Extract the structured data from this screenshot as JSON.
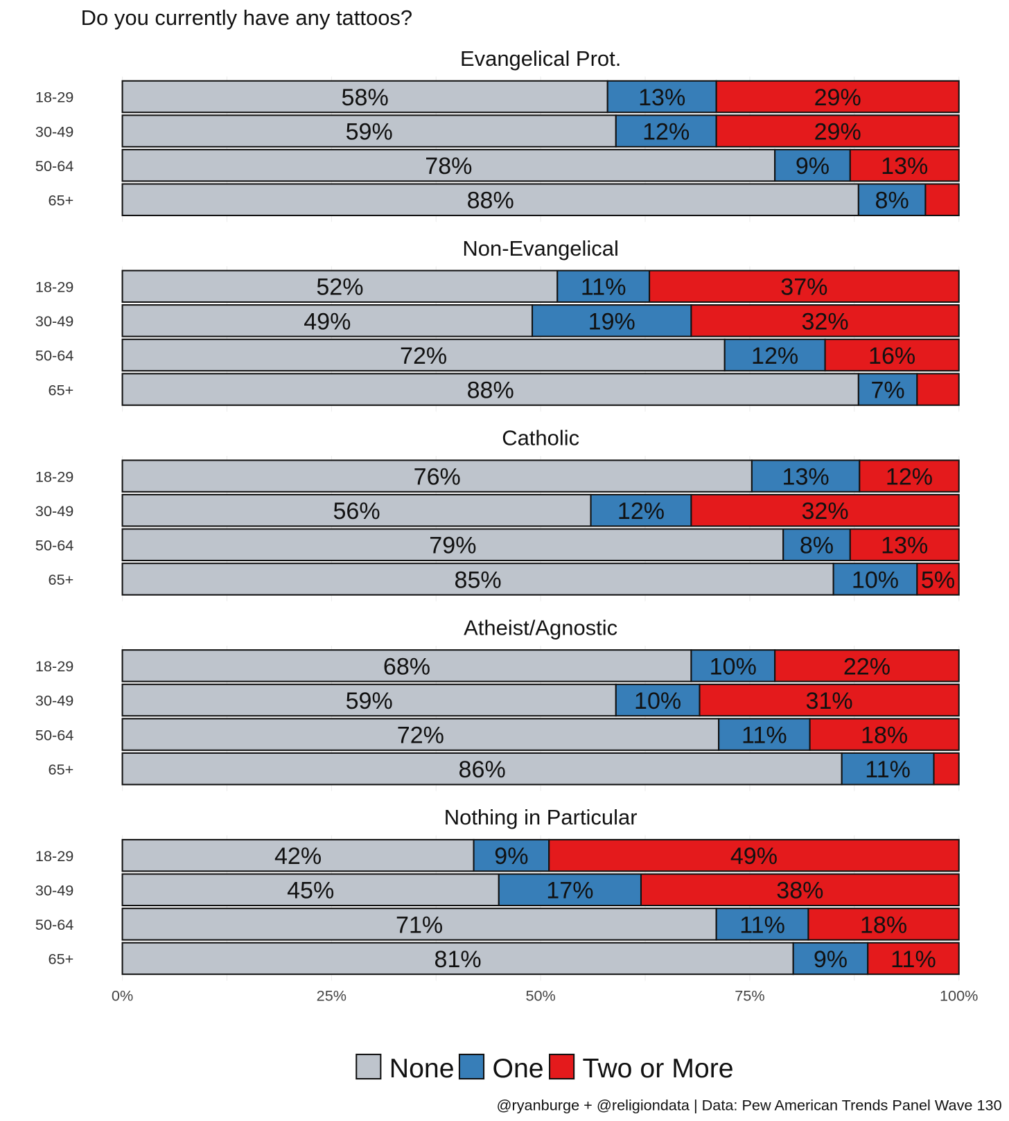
{
  "chart_data": {
    "type": "bar",
    "orientation": "horizontal",
    "stacked": true,
    "title": "Do you currently have any tattoos?",
    "caption": "@ryanburge + @religiondata | Data: Pew American Trends Panel Wave 130",
    "categories": [
      "18-29",
      "30-49",
      "50-64",
      "65+"
    ],
    "legend": {
      "placement": "bottom",
      "entries": [
        {
          "name": "None",
          "color": "#bec4cc"
        },
        {
          "name": "One",
          "color": "#377eb8"
        },
        {
          "name": "Two or More",
          "color": "#e41a1c"
        }
      ]
    },
    "x_ticks": [
      "0%",
      "25%",
      "50%",
      "75%",
      "100%"
    ],
    "xlim": [
      0,
      100
    ],
    "panels": [
      {
        "name": "Evangelical Prot.",
        "rows": [
          {
            "values": [
              58,
              13,
              29
            ],
            "show": [
              true,
              true,
              true
            ]
          },
          {
            "values": [
              59,
              12,
              29
            ],
            "show": [
              true,
              true,
              true
            ]
          },
          {
            "values": [
              78,
              9,
              13
            ],
            "show": [
              true,
              true,
              true
            ]
          },
          {
            "values": [
              88,
              8,
              4
            ],
            "show": [
              true,
              true,
              false
            ]
          }
        ]
      },
      {
        "name": "Non-Evangelical",
        "rows": [
          {
            "values": [
              52,
              11,
              37
            ],
            "show": [
              true,
              true,
              true
            ]
          },
          {
            "values": [
              49,
              19,
              32
            ],
            "show": [
              true,
              true,
              true
            ]
          },
          {
            "values": [
              72,
              12,
              16
            ],
            "show": [
              true,
              true,
              true
            ]
          },
          {
            "values": [
              88,
              7,
              5
            ],
            "show": [
              true,
              true,
              false
            ]
          }
        ]
      },
      {
        "name": "Catholic",
        "rows": [
          {
            "values": [
              76,
              13,
              12
            ],
            "show": [
              true,
              true,
              true
            ]
          },
          {
            "values": [
              56,
              12,
              32
            ],
            "show": [
              true,
              true,
              true
            ]
          },
          {
            "values": [
              79,
              8,
              13
            ],
            "show": [
              true,
              true,
              true
            ]
          },
          {
            "values": [
              85,
              10,
              5
            ],
            "show": [
              true,
              true,
              true
            ]
          }
        ]
      },
      {
        "name": "Atheist/Agnostic",
        "rows": [
          {
            "values": [
              68,
              10,
              22
            ],
            "show": [
              true,
              true,
              true
            ]
          },
          {
            "values": [
              59,
              10,
              31
            ],
            "show": [
              true,
              true,
              true
            ]
          },
          {
            "values": [
              72,
              11,
              18
            ],
            "show": [
              true,
              true,
              true
            ]
          },
          {
            "values": [
              86,
              11,
              3
            ],
            "show": [
              true,
              true,
              false
            ]
          }
        ]
      },
      {
        "name": "Nothing in Particular",
        "rows": [
          {
            "values": [
              42,
              9,
              49
            ],
            "show": [
              true,
              true,
              true
            ]
          },
          {
            "values": [
              45,
              17,
              38
            ],
            "show": [
              true,
              true,
              true
            ]
          },
          {
            "values": [
              71,
              11,
              18
            ],
            "show": [
              true,
              true,
              true
            ]
          },
          {
            "values": [
              81,
              9,
              11
            ],
            "show": [
              true,
              true,
              true
            ]
          }
        ]
      }
    ]
  }
}
